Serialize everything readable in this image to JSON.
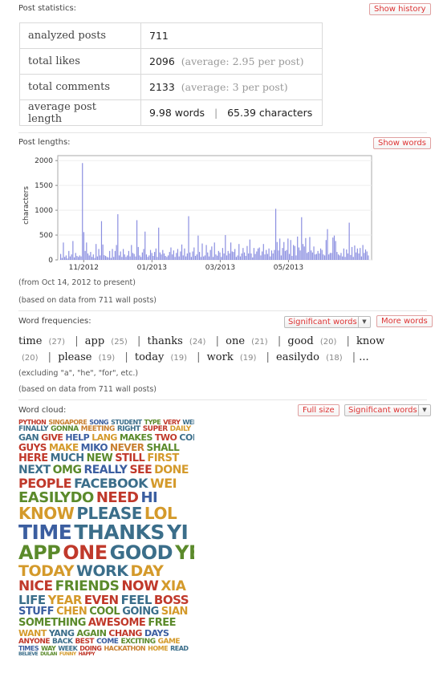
{
  "stats": {
    "title": "Post statistics:",
    "history_button": "Show history",
    "rows": [
      {
        "label": "analyzed posts",
        "value": "711",
        "extra": ""
      },
      {
        "label": "total likes",
        "value": "2096",
        "extra": "(average: 2.95 per post)"
      },
      {
        "label": "total comments",
        "value": "2133",
        "extra": "(average: 3 per post)"
      }
    ],
    "avg_label": "average post length",
    "avg_words": "9.98 words",
    "avg_sep": "|",
    "avg_chars": "65.39 characters"
  },
  "lengths": {
    "title": "Post lengths:",
    "words_button": "Show words",
    "note_range": "(from Oct 14, 2012 to present)",
    "note_based": "(based on data from 711 wall posts)"
  },
  "chart_data": {
    "type": "bar",
    "ylabel": "characters",
    "ylim": [
      0,
      2100
    ],
    "yticks": [
      0,
      500,
      1000,
      1500,
      2000
    ],
    "xticks": [
      "11/2012",
      "01/2013",
      "03/2013",
      "05/2013"
    ],
    "bar_color": "#8a8ee0",
    "values": [
      120,
      40,
      350,
      60,
      90,
      30,
      180,
      70,
      110,
      380,
      50,
      140,
      80,
      60,
      90,
      70,
      1950,
      560,
      180,
      350,
      130,
      90,
      160,
      60,
      110,
      40,
      320,
      70,
      220,
      90,
      780,
      310,
      95,
      80,
      60,
      50,
      180,
      40,
      220,
      60,
      180,
      300,
      920,
      90,
      170,
      60,
      220,
      110,
      60,
      90,
      180,
      70,
      300,
      140,
      120,
      70,
      800,
      260,
      90,
      60,
      150,
      220,
      570,
      110,
      60,
      90,
      200,
      140,
      80,
      160,
      230,
      60,
      650,
      150,
      110,
      200,
      130,
      80,
      60,
      90,
      160,
      250,
      110,
      190,
      60,
      140,
      220,
      70,
      170,
      310,
      90,
      230,
      70,
      130,
      880,
      150,
      60,
      170,
      250,
      80,
      110,
      490,
      160,
      60,
      330,
      70,
      90,
      300,
      150,
      70,
      200,
      270,
      60,
      350,
      110,
      85,
      180,
      150,
      60,
      240,
      130,
      500,
      90,
      180,
      130,
      350,
      170,
      160,
      220,
      60,
      90,
      320,
      70,
      130,
      240,
      150,
      80,
      280,
      130,
      410,
      130,
      50,
      240,
      120,
      170,
      230,
      250,
      90,
      170,
      320,
      110,
      200,
      120,
      230,
      70,
      190,
      130,
      200,
      1030,
      360,
      190,
      430,
      90,
      240,
      360,
      180,
      200,
      430,
      120,
      400,
      80,
      300,
      280,
      90,
      470,
      250,
      190,
      860,
      320,
      270,
      440,
      140,
      160,
      460,
      190,
      150,
      270,
      110,
      120,
      180,
      130,
      230,
      200,
      110,
      90,
      400,
      620,
      110,
      140,
      140,
      450,
      490,
      380,
      160,
      110,
      90,
      140,
      70,
      230,
      60,
      210,
      130,
      750,
      100,
      260,
      60,
      290,
      150,
      230,
      130,
      240,
      70,
      300,
      140,
      210,
      170,
      90
    ]
  },
  "freq": {
    "title": "Word frequencies:",
    "select": "Significant words",
    "more_button": "More words",
    "words": [
      {
        "w": "time",
        "c": "(27)"
      },
      {
        "w": "app",
        "c": "(25)"
      },
      {
        "w": "thanks",
        "c": "(24)"
      },
      {
        "w": "one",
        "c": "(21)"
      },
      {
        "w": "good",
        "c": "(20)"
      },
      {
        "w": "know",
        "c": "(20)"
      },
      {
        "w": "please",
        "c": "(19)"
      },
      {
        "w": "today",
        "c": "(19)"
      },
      {
        "w": "work",
        "c": "(19)"
      },
      {
        "w": "easilydo",
        "c": "(18)"
      }
    ],
    "ellipsis": "...",
    "excluding": "(excluding \"a\", \"he\", \"for\", etc.)",
    "based": "(based on data from 711 wall posts)"
  },
  "cloud": {
    "title": "Word cloud:",
    "full_button": "Full size",
    "select": "Significant words",
    "rows": [
      {
        "s": 8,
        "words": [
          [
            "PYTHON",
            "#c0392b"
          ],
          [
            "SINGAPORE",
            "#c87f2f"
          ],
          [
            "SONG",
            "#3b5ea0"
          ],
          [
            "STUDENT",
            "#3b6e8a"
          ],
          [
            "TYPE",
            "#5b8a2b"
          ],
          [
            "VERY",
            "#c0392b"
          ],
          [
            "WELL",
            "#3b6e8a"
          ]
        ]
      },
      {
        "s": 9,
        "words": [
          [
            "FINALLY",
            "#3b6e8a"
          ],
          [
            "GONNA",
            "#5b8a2b"
          ],
          [
            "MEETING",
            "#c87f2f"
          ],
          [
            "RIGHT",
            "#3b6e8a"
          ],
          [
            "SUPER",
            "#c0392b"
          ],
          [
            "DAILY",
            "#d49a2b"
          ]
        ]
      },
      {
        "s": 11,
        "words": [
          [
            "GAN",
            "#3b6e8a"
          ],
          [
            "GIVE",
            "#c0392b"
          ],
          [
            "HELP",
            "#3b5ea0"
          ],
          [
            "LANG",
            "#d49a2b"
          ],
          [
            "MAKES",
            "#5b8a2b"
          ],
          [
            "TWO",
            "#c0392b"
          ],
          [
            "CODE",
            "#3b6e8a"
          ]
        ]
      },
      {
        "s": 12,
        "words": [
          [
            "GUYS",
            "#c0392b"
          ],
          [
            "MAKE",
            "#d49a2b"
          ],
          [
            "MIKO",
            "#3b5ea0"
          ],
          [
            "NEVER",
            "#c87f2f"
          ],
          [
            "SHALL",
            "#5b8a2b"
          ]
        ]
      },
      {
        "s": 13,
        "words": [
          [
            "HERE",
            "#c0392b"
          ],
          [
            "MUCH",
            "#3b6e8a"
          ],
          [
            "NEW",
            "#5b8a2b"
          ],
          [
            "STILL",
            "#c0392b"
          ],
          [
            "FIRST",
            "#d49a2b"
          ]
        ]
      },
      {
        "s": 14,
        "words": [
          [
            "NEXT",
            "#3b6e8a"
          ],
          [
            "OMG",
            "#5b8a2b"
          ],
          [
            "REALLY",
            "#3b5ea0"
          ],
          [
            "SEE",
            "#c0392b"
          ],
          [
            "DONE",
            "#d49a2b"
          ]
        ]
      },
      {
        "s": 16,
        "words": [
          [
            "PEOPLE",
            "#c0392b"
          ],
          [
            "FACEBOOK",
            "#3b6e8a"
          ],
          [
            "WEI",
            "#d49a2b"
          ]
        ]
      },
      {
        "s": 18,
        "words": [
          [
            "EASILYDO",
            "#5b8a2b"
          ],
          [
            "NEED",
            "#c0392b"
          ],
          [
            "HI",
            "#3b5ea0"
          ]
        ]
      },
      {
        "s": 20,
        "words": [
          [
            "KNOW",
            "#d49a2b"
          ],
          [
            "PLEASE",
            "#3b6e8a"
          ],
          [
            "LOL",
            "#d49a2b"
          ]
        ]
      },
      {
        "s": 25,
        "words": [
          [
            "TIME",
            "#3b5ea0"
          ],
          [
            "THANKS",
            "#3b6e8a"
          ],
          [
            "YI",
            "#3b6e8a"
          ]
        ]
      },
      {
        "s": 24,
        "words": [
          [
            "APP",
            "#5b8a2b"
          ],
          [
            "ONE",
            "#c0392b"
          ],
          [
            "GOOD",
            "#3b6e8a"
          ],
          [
            "YEE",
            "#5b8a2b"
          ]
        ]
      },
      {
        "s": 19,
        "words": [
          [
            "TODAY",
            "#d49a2b"
          ],
          [
            "WORK",
            "#3b6e8a"
          ],
          [
            "DAY",
            "#d49a2b"
          ]
        ]
      },
      {
        "s": 17,
        "words": [
          [
            "NICE",
            "#c0392b"
          ],
          [
            "FRIENDS",
            "#5b8a2b"
          ],
          [
            "NOW",
            "#c0392b"
          ],
          [
            "XIA",
            "#d49a2b"
          ]
        ]
      },
      {
        "s": 15,
        "words": [
          [
            "LIFE",
            "#3b6e8a"
          ],
          [
            "YEAR",
            "#d49a2b"
          ],
          [
            "EVEN",
            "#c0392b"
          ],
          [
            "FEEL",
            "#3b6e8a"
          ],
          [
            "BOSS",
            "#c0392b"
          ]
        ]
      },
      {
        "s": 13,
        "words": [
          [
            "STUFF",
            "#3b5ea0"
          ],
          [
            "CHEN",
            "#d49a2b"
          ],
          [
            "COOL",
            "#5b8a2b"
          ],
          [
            "GOING",
            "#3b6e8a"
          ],
          [
            "SIAN",
            "#d49a2b"
          ]
        ]
      },
      {
        "s": 13,
        "words": [
          [
            "SOMETHING",
            "#5b8a2b"
          ],
          [
            "AWESOME",
            "#c0392b"
          ],
          [
            "FREE",
            "#5b8a2b"
          ]
        ]
      },
      {
        "s": 11,
        "words": [
          [
            "WANT",
            "#d49a2b"
          ],
          [
            "YANG",
            "#3b6e8a"
          ],
          [
            "AGAIN",
            "#5b8a2b"
          ],
          [
            "CHANG",
            "#c0392b"
          ],
          [
            "DAYS",
            "#3b5ea0"
          ]
        ]
      },
      {
        "s": 9,
        "words": [
          [
            "ANYONE",
            "#c0392b"
          ],
          [
            "BACK",
            "#3b6e8a"
          ],
          [
            "BEST",
            "#c0392b"
          ],
          [
            "COME",
            "#3b5ea0"
          ],
          [
            "EXCITING",
            "#5b8a2b"
          ],
          [
            "GAME",
            "#d49a2b"
          ]
        ]
      },
      {
        "s": 8,
        "words": [
          [
            "TIMES",
            "#3b5ea0"
          ],
          [
            "WAY",
            "#5b8a2b"
          ],
          [
            "WEEK",
            "#3b6e8a"
          ],
          [
            "DOING",
            "#c0392b"
          ],
          [
            "HACKATHON",
            "#c87f2f"
          ],
          [
            "HOME",
            "#d49a2b"
          ],
          [
            "READ",
            "#3b6e8a"
          ]
        ]
      },
      {
        "s": 6,
        "words": [
          [
            "BELIEVE",
            "#3b6e8a"
          ],
          [
            "DULAN",
            "#5b8a2b"
          ],
          [
            "FUNNY",
            "#d49a2b"
          ],
          [
            "HAPPY",
            "#c0392b"
          ]
        ]
      }
    ]
  }
}
